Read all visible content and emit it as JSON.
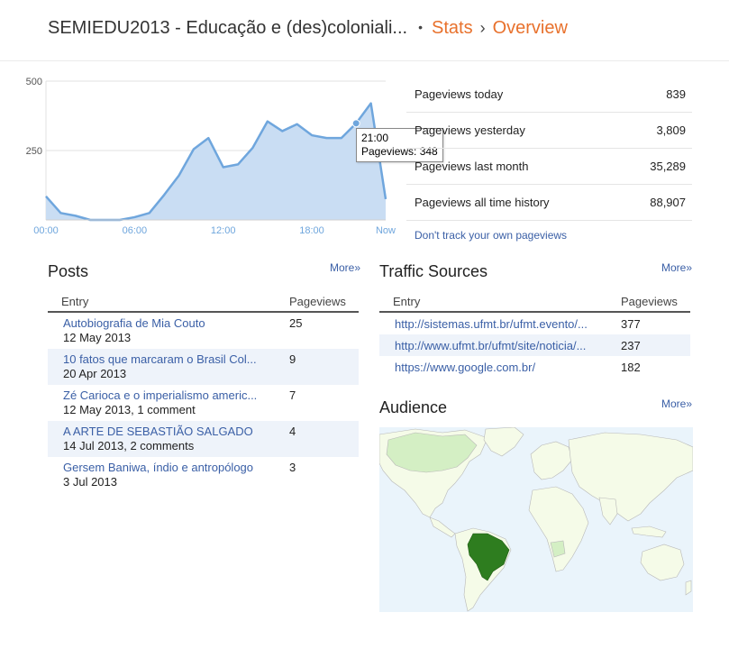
{
  "header": {
    "blog_title": "SEMIEDU2013 - Educação e (des)coloniali...",
    "crumb_stats": "Stats",
    "crumb_overview": "Overview"
  },
  "chart_data": {
    "type": "area",
    "x_tick_labels": [
      "00:00",
      "06:00",
      "12:00",
      "18:00",
      "Now"
    ],
    "y_tick_labels": [
      "500",
      "250"
    ],
    "ylim": [
      0,
      500
    ],
    "hours": [
      0,
      1,
      2,
      3,
      4,
      5,
      6,
      7,
      8,
      9,
      10,
      11,
      12,
      13,
      14,
      15,
      16,
      17,
      18,
      19,
      20,
      21,
      22,
      23
    ],
    "values": [
      85,
      25,
      15,
      0,
      0,
      0,
      10,
      25,
      90,
      160,
      255,
      295,
      190,
      200,
      260,
      355,
      320,
      345,
      305,
      295,
      295,
      348,
      420,
      75
    ],
    "tooltip": {
      "time": "21:00",
      "label": "Pageviews: 348",
      "index": 21
    },
    "colors": {
      "line": "#6fa6dd",
      "fill": "#c9ddf3",
      "grid": "#e0e0e0"
    }
  },
  "stats": [
    {
      "label": "Pageviews today",
      "value": "839"
    },
    {
      "label": "Pageviews yesterday",
      "value": "3,809"
    },
    {
      "label": "Pageviews last month",
      "value": "35,289"
    },
    {
      "label": "Pageviews all time history",
      "value": "88,907"
    }
  ],
  "dont_track": "Don't track your own pageviews",
  "posts": {
    "title": "Posts",
    "more": "More»",
    "col_entry": "Entry",
    "col_pageviews": "Pageviews",
    "rows": [
      {
        "title": "Autobiografia de Mia Couto",
        "meta": "12 May 2013",
        "views": "25"
      },
      {
        "title": "10 fatos que marcaram o Brasil Col...",
        "meta": "20 Apr 2013",
        "views": "9"
      },
      {
        "title": "Zé Carioca e o imperialismo americ...",
        "meta": "12 May 2013, 1 comment",
        "views": "7"
      },
      {
        "title": "A ARTE DE SEBASTIÃO SALGADO",
        "meta": "14 Jul 2013, 2 comments",
        "views": "4"
      },
      {
        "title": "Gersem Baniwa, índio e antropólogo",
        "meta": "3 Jul 2013",
        "views": "3"
      }
    ]
  },
  "traffic": {
    "title": "Traffic Sources",
    "more": "More»",
    "col_entry": "Entry",
    "col_pageviews": "Pageviews",
    "rows": [
      {
        "url": "http://sistemas.ufmt.br/ufmt.evento/...",
        "views": "377"
      },
      {
        "url": "http://www.ufmt.br/ufmt/site/noticia/...",
        "views": "237"
      },
      {
        "url": "https://www.google.com.br/",
        "views": "182"
      }
    ]
  },
  "audience": {
    "title": "Audience",
    "more": "More»",
    "colors": {
      "ocean": "#eaf4fb",
      "land": "#f5fbe8",
      "light": "#d4efc4",
      "top": "#2e7d1f",
      "border": "#b8b8b8"
    }
  }
}
